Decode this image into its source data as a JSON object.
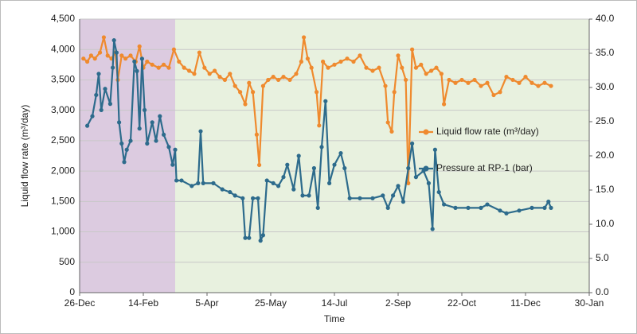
{
  "chart_data": {
    "type": "line",
    "y_label": "Liquid flow rate (m³/day)",
    "x_label": "Time",
    "xlim": [
      0,
      400
    ],
    "xticks": [
      {
        "value": 0,
        "label": "26-Dec"
      },
      {
        "value": 50,
        "label": "14-Feb"
      },
      {
        "value": 100,
        "label": "5-Apr"
      },
      {
        "value": 150,
        "label": "25-May"
      },
      {
        "value": 200,
        "label": "14-Jul"
      },
      {
        "value": 250,
        "label": "2-Sep"
      },
      {
        "value": 300,
        "label": "22-Oct"
      },
      {
        "value": 350,
        "label": "11-Dec"
      },
      {
        "value": 400,
        "label": "30-Jan"
      }
    ],
    "ylim": [
      0,
      4500
    ],
    "yticks": [
      0,
      500,
      {
        "value": 1000,
        "label": "1,000"
      },
      {
        "value": 1500,
        "label": "1,500"
      },
      {
        "value": 2000,
        "label": "2,000"
      },
      {
        "value": 2500,
        "label": "2,500"
      },
      {
        "value": 3000,
        "label": "3,000"
      },
      {
        "value": 3500,
        "label": "3,500"
      },
      {
        "value": 4000,
        "label": "4,000"
      },
      {
        "value": 4500,
        "label": "4,500"
      }
    ],
    "y2lim": [
      0,
      40
    ],
    "y2ticks": [
      {
        "value": 0,
        "label": "0.0"
      },
      {
        "value": 5,
        "label": "5.0"
      },
      {
        "value": 10,
        "label": "10.0"
      },
      {
        "value": 15,
        "label": "15.0"
      },
      {
        "value": 20,
        "label": "20.0"
      },
      {
        "value": 25,
        "label": "25.0"
      },
      {
        "value": 30,
        "label": "30.0"
      },
      {
        "value": 35,
        "label": "35.0"
      },
      {
        "value": 40,
        "label": "40.0"
      }
    ],
    "grid": true,
    "shaded_regions": [
      {
        "x": [
          0,
          75
        ],
        "color": "#dccbe0"
      },
      {
        "x": [
          75,
          400
        ],
        "color": "#e8f1df"
      }
    ],
    "series": [
      {
        "name": "Liquid flow rate (m³/day)",
        "color": "#ef8a2e",
        "x": [
          3,
          6,
          9,
          12,
          16,
          19,
          22,
          25,
          28,
          30,
          33,
          36,
          40,
          44,
          47,
          50,
          53,
          57,
          62,
          66,
          70,
          74,
          78,
          82,
          86,
          90,
          94,
          98,
          102,
          106,
          110,
          114,
          118,
          122,
          126,
          130,
          133,
          136,
          139,
          141,
          144,
          148,
          152,
          156,
          160,
          165,
          170,
          174,
          176,
          179,
          182,
          186,
          188,
          191,
          195,
          200,
          205,
          210,
          215,
          220,
          225,
          230,
          235,
          240,
          242,
          245,
          247,
          250,
          253,
          256,
          258,
          261,
          264,
          268,
          272,
          276,
          280,
          284,
          286,
          290,
          295,
          300,
          305,
          310,
          315,
          320,
          325,
          330,
          335,
          340,
          345,
          350,
          355,
          360,
          365,
          370
        ],
        "values": [
          3850,
          3800,
          3900,
          3850,
          3950,
          4200,
          3900,
          3850,
          3950,
          3500,
          3900,
          3850,
          3900,
          3800,
          4050,
          3700,
          3800,
          3750,
          3700,
          3750,
          3700,
          4000,
          3800,
          3700,
          3650,
          3600,
          3950,
          3700,
          3600,
          3650,
          3550,
          3500,
          3600,
          3400,
          3300,
          3100,
          3450,
          3300,
          2600,
          2100,
          3400,
          3500,
          3550,
          3500,
          3550,
          3500,
          3600,
          3800,
          4200,
          3850,
          3700,
          3300,
          2750,
          3800,
          3700,
          3750,
          3800,
          3850,
          3800,
          3900,
          3700,
          3650,
          3700,
          3400,
          2800,
          2650,
          3300,
          3900,
          3700,
          3500,
          1800,
          4000,
          3700,
          3750,
          3600,
          3650,
          3700,
          3600,
          3100,
          3500,
          3450,
          3500,
          3450,
          3500,
          3400,
          3450,
          3250,
          3300,
          3550,
          3500,
          3450,
          3550,
          3450,
          3400,
          3450,
          3400
        ]
      },
      {
        "name": "Pressure at RP-1 (bar)",
        "color": "#2d6b8c",
        "axis": "y2",
        "x": [
          6,
          10,
          13,
          15,
          17,
          20,
          24,
          26,
          27,
          29,
          31,
          33,
          35,
          37,
          40,
          43,
          45,
          47,
          49,
          51,
          53,
          57,
          60,
          63,
          66,
          70,
          73,
          75,
          76,
          80,
          88,
          93,
          95,
          97,
          105,
          112,
          118,
          122,
          128,
          130,
          133,
          136,
          140,
          142,
          144,
          147,
          152,
          156,
          160,
          163,
          168,
          172,
          175,
          180,
          184,
          187,
          190,
          193,
          196,
          200,
          205,
          208,
          212,
          220,
          230,
          238,
          242,
          246,
          250,
          254,
          258,
          261,
          264,
          270,
          274,
          277,
          279,
          282,
          286,
          295,
          305,
          315,
          320,
          330,
          335,
          345,
          355,
          365,
          368,
          370
        ],
        "values": [
          24.4,
          25.8,
          28.9,
          32,
          26.7,
          29.8,
          27.6,
          32.9,
          36.9,
          35.1,
          24.9,
          21.8,
          19.1,
          20.9,
          22.2,
          33.8,
          32.4,
          24,
          34.2,
          26.7,
          21.8,
          24.9,
          22.2,
          25.8,
          23.1,
          21.3,
          18.7,
          20.9,
          16.4,
          16.4,
          15.6,
          16,
          23.6,
          16,
          16,
          15.1,
          14.7,
          14.2,
          13.8,
          8,
          8,
          13.8,
          13.8,
          7.6,
          8.4,
          16.4,
          16,
          15.6,
          16.9,
          18.7,
          15.1,
          20,
          14.2,
          14.2,
          18.2,
          12.4,
          21.3,
          28,
          16,
          18.7,
          20.4,
          18.2,
          13.8,
          13.8,
          13.8,
          14.2,
          12.4,
          14.2,
          15.6,
          13.3,
          18.2,
          21.8,
          16.9,
          17.8,
          16,
          9.3,
          20.9,
          14.7,
          12.9,
          12.4,
          12.4,
          12.4,
          12.9,
          12,
          11.6,
          12,
          12.4,
          12.4,
          13.3,
          12.4
        ]
      }
    ]
  }
}
